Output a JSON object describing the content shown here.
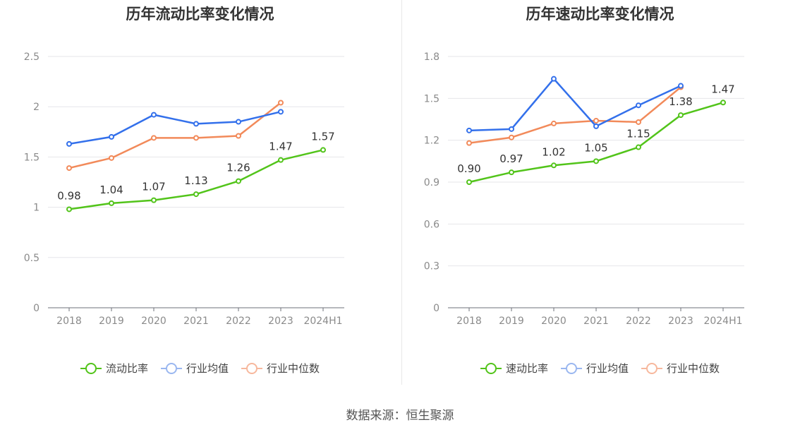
{
  "chart_data": [
    {
      "type": "line",
      "title": "历年流动比率变化情况",
      "categories": [
        "2018",
        "2019",
        "2020",
        "2021",
        "2022",
        "2023",
        "2024H1"
      ],
      "ylim": [
        0,
        2.5
      ],
      "yticks": [
        "0",
        "0.5",
        "1",
        "1.5",
        "2",
        "2.5"
      ],
      "series": [
        {
          "name": "流动比率",
          "color": "#52c41a",
          "values": [
            0.98,
            1.04,
            1.07,
            1.13,
            1.26,
            1.47,
            1.57
          ],
          "labels": [
            "0.98",
            "1.04",
            "1.07",
            "1.13",
            "1.26",
            "1.47",
            "1.57"
          ]
        },
        {
          "name": "行业均值",
          "color": "#3370eb",
          "values": [
            1.63,
            1.7,
            1.92,
            1.83,
            1.85,
            1.95,
            null
          ]
        },
        {
          "name": "行业中位数",
          "color": "#f28a5a",
          "values": [
            1.39,
            1.49,
            1.69,
            1.69,
            1.71,
            2.04,
            null
          ]
        }
      ],
      "legend": [
        {
          "name": "流动比率",
          "line": "#52c41a",
          "ring": "#52c41a"
        },
        {
          "name": "行业均值",
          "line": "#9ab7f0",
          "ring": "#9ab7f0"
        },
        {
          "name": "行业中位数",
          "line": "#f7b89d",
          "ring": "#f7b89d"
        }
      ]
    },
    {
      "type": "line",
      "title": "历年速动比率变化情况",
      "categories": [
        "2018",
        "2019",
        "2020",
        "2021",
        "2022",
        "2023",
        "2024H1"
      ],
      "ylim": [
        0,
        1.8
      ],
      "yticks": [
        "0",
        "0.3",
        "0.6",
        "0.9",
        "1.2",
        "1.5",
        "1.8"
      ],
      "series": [
        {
          "name": "速动比率",
          "color": "#52c41a",
          "values": [
            0.9,
            0.97,
            1.02,
            1.05,
            1.15,
            1.38,
            1.47
          ],
          "labels": [
            "0.90",
            "0.97",
            "1.02",
            "1.05",
            "1.15",
            "1.38",
            "1.47"
          ]
        },
        {
          "name": "行业均值",
          "color": "#3370eb",
          "values": [
            1.27,
            1.28,
            1.64,
            1.3,
            1.45,
            1.59,
            null
          ]
        },
        {
          "name": "行业中位数",
          "color": "#f28a5a",
          "values": [
            1.18,
            1.22,
            1.32,
            1.34,
            1.33,
            1.58,
            null
          ]
        }
      ],
      "legend": [
        {
          "name": "速动比率",
          "line": "#52c41a",
          "ring": "#52c41a"
        },
        {
          "name": "行业均值",
          "line": "#9ab7f0",
          "ring": "#9ab7f0"
        },
        {
          "name": "行业中位数",
          "line": "#f7b89d",
          "ring": "#f7b89d"
        }
      ]
    }
  ],
  "footer": "数据来源：恒生聚源"
}
